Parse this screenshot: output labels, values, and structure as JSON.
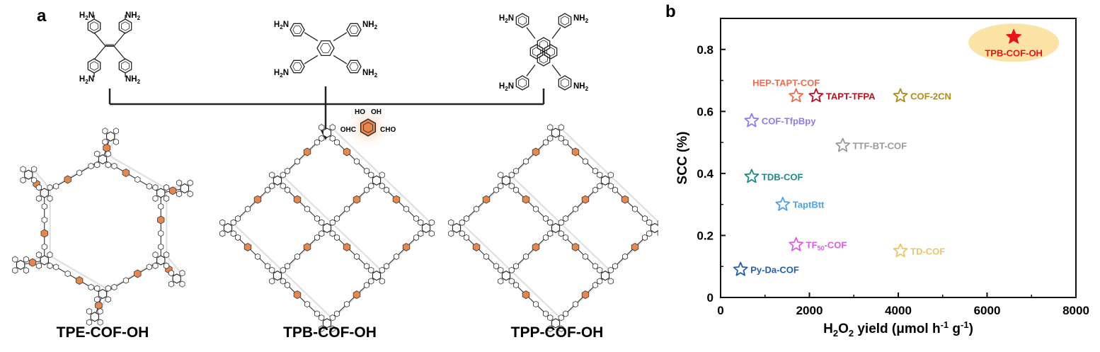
{
  "panel_a": {
    "letter": "a",
    "amine_label": "NH",
    "amine_sub": "2",
    "aldehyde": {
      "label_left": "OHC",
      "label_right": "CHO",
      "oh": "HO",
      "oh2": "OH"
    },
    "cofs": [
      {
        "name": "TPE-COF-OH",
        "topology": "kagome"
      },
      {
        "name": "TPB-COF-OH",
        "topology": "square"
      },
      {
        "name": "TPP-COF-OH",
        "topology": "square"
      }
    ]
  },
  "chart_data": {
    "panel_letter": "b",
    "type": "scatter",
    "xlabel_parts": [
      "H",
      "2",
      "O",
      "2",
      " yield (μmol h",
      "-1",
      " g",
      "-1",
      ")"
    ],
    "ylabel": "SCC (%)",
    "xlim": [
      0,
      8000
    ],
    "ylim": [
      0,
      0.9
    ],
    "xticks": [
      0,
      2000,
      4000,
      6000,
      8000
    ],
    "yticks": [
      0,
      0.2,
      0.4,
      0.6,
      0.8
    ],
    "xtick_labels": [
      "0",
      "2000",
      "4000",
      "6000",
      "8000"
    ],
    "ytick_labels": [
      "0",
      "0.2",
      "0.4",
      "0.6",
      "0.8"
    ],
    "grid": false,
    "marker": "star",
    "points": [
      {
        "label": "TPB-COF-OH",
        "x": 6600,
        "y": 0.84,
        "color": "#e8141c",
        "filled": true,
        "highlight": "#fbe3a6",
        "label_pos": "below"
      },
      {
        "label": "HEP-TAPT-COF",
        "x": 1700,
        "y": 0.65,
        "color": "#f26b4a",
        "filled": false,
        "label_pos": "above"
      },
      {
        "label": "TAPT-TFPA",
        "x": 2150,
        "y": 0.65,
        "color": "#c00d1e",
        "filled": false,
        "label_pos": "right"
      },
      {
        "label": "COF-2CN",
        "x": 4050,
        "y": 0.65,
        "color": "#b08a1a",
        "filled": false,
        "label_pos": "right"
      },
      {
        "label": "COF-TfpBpy",
        "x": 700,
        "y": 0.57,
        "color": "#8b7cf0",
        "filled": false,
        "label_pos": "right"
      },
      {
        "label": "TTF-BT-COF",
        "x": 2750,
        "y": 0.49,
        "color": "#9a9a9a",
        "filled": false,
        "label_pos": "right"
      },
      {
        "label": "TDB-COF",
        "x": 700,
        "y": 0.39,
        "color": "#1a8c86",
        "filled": false,
        "label_pos": "right"
      },
      {
        "label": "TaptBtt",
        "x": 1400,
        "y": 0.3,
        "color": "#4aa3ea",
        "filled": false,
        "label_pos": "right"
      },
      {
        "label": "TF",
        "label_sub": "50",
        "label_tail": "-COF",
        "x": 1700,
        "y": 0.17,
        "color": "#dd5ce0",
        "filled": false,
        "label_pos": "right"
      },
      {
        "label": "TD-COF",
        "x": 4050,
        "y": 0.15,
        "color": "#ecc46a",
        "filled": false,
        "label_pos": "right"
      },
      {
        "label": "Py-Da-COF",
        "x": 450,
        "y": 0.09,
        "color": "#1f5fae",
        "filled": false,
        "label_pos": "right"
      }
    ]
  }
}
